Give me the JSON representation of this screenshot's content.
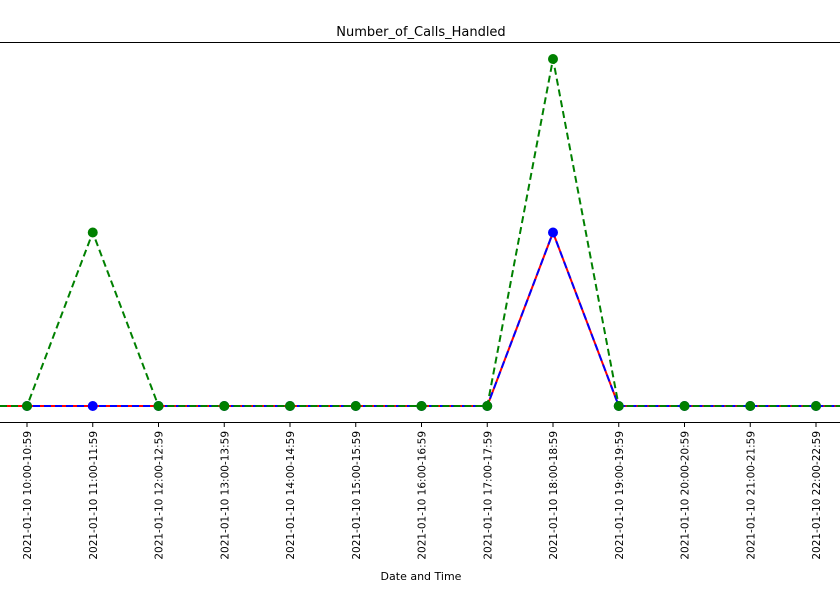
{
  "chart_data": {
    "type": "line",
    "title": "Number_of_Calls_Handled",
    "xlabel": "Date and Time",
    "ylabel": "",
    "grid": false,
    "y_ticks_shown": false,
    "categories": [
      "2021-01-10 10:00-10:59",
      "2021-01-10 11:00-11:59",
      "2021-01-10 12:00-12:59",
      "2021-01-10 13:00-13:59",
      "2021-01-10 14:00-14:59",
      "2021-01-10 15:00-15:59",
      "2021-01-10 16:00-16:59",
      "2021-01-10 17:00-17:59",
      "2021-01-10 18:00-18:59",
      "2021-01-10 19:00-19:59",
      "2021-01-10 20:00-20:59",
      "2021-01-10 21:00-21:59",
      "2021-01-10 22:00-22:59"
    ],
    "ylim": [
      -0.1,
      2.1
    ],
    "series": [
      {
        "color": "#ff0000",
        "linestyle": "solid",
        "marker": "none",
        "values": [
          0,
          0,
          0,
          0,
          0,
          0,
          0,
          0,
          1,
          0,
          0,
          0,
          0
        ]
      },
      {
        "color": "#0000ff",
        "linestyle": "dashed",
        "marker": "circle",
        "values": [
          0,
          0,
          0,
          0,
          0,
          0,
          0,
          0,
          1,
          0,
          0,
          0,
          0
        ]
      },
      {
        "color": "#008000",
        "linestyle": "dashed",
        "marker": "circle",
        "values": [
          0,
          1,
          0,
          0,
          0,
          0,
          0,
          0,
          2,
          0,
          0,
          0,
          0
        ]
      }
    ]
  }
}
